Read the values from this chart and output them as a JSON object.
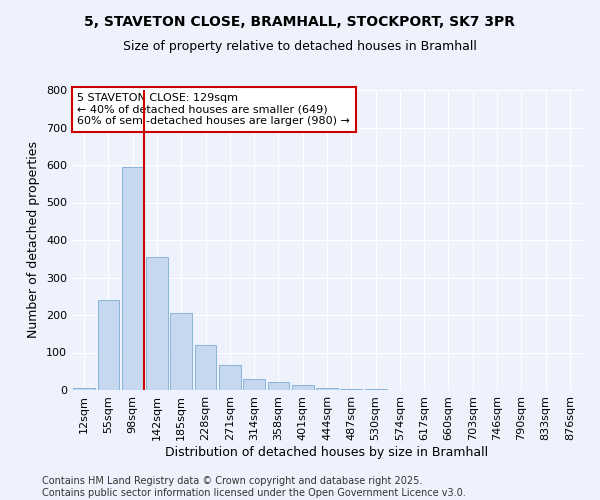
{
  "title_line1": "5, STAVETON CLOSE, BRAMHALL, STOCKPORT, SK7 3PR",
  "title_line2": "Size of property relative to detached houses in Bramhall",
  "xlabel": "Distribution of detached houses by size in Bramhall",
  "ylabel": "Number of detached properties",
  "categories": [
    "12sqm",
    "55sqm",
    "98sqm",
    "142sqm",
    "185sqm",
    "228sqm",
    "271sqm",
    "314sqm",
    "358sqm",
    "401sqm",
    "444sqm",
    "487sqm",
    "530sqm",
    "574sqm",
    "617sqm",
    "660sqm",
    "703sqm",
    "746sqm",
    "790sqm",
    "833sqm",
    "876sqm"
  ],
  "values": [
    5,
    240,
    595,
    355,
    205,
    120,
    68,
    30,
    22,
    14,
    5,
    2,
    2,
    0,
    0,
    0,
    0,
    0,
    0,
    0,
    0
  ],
  "bar_color": "#c5d8f0",
  "bar_edge_color": "#8ab4d8",
  "vline_color": "#cc0000",
  "vline_index": 2,
  "annotation_title": "5 STAVETON CLOSE: 129sqm",
  "annotation_line2": "← 40% of detached houses are smaller (649)",
  "annotation_line3": "60% of semi-detached houses are larger (980) →",
  "annotation_box_edgecolor": "#cc0000",
  "annotation_box_facecolor": "#ffffff",
  "ylim": [
    0,
    800
  ],
  "yticks": [
    0,
    100,
    200,
    300,
    400,
    500,
    600,
    700,
    800
  ],
  "background_color": "#eef2fc",
  "grid_color": "#ffffff",
  "footer_line1": "Contains HM Land Registry data © Crown copyright and database right 2025.",
  "footer_line2": "Contains public sector information licensed under the Open Government Licence v3.0.",
  "title_fontsize": 10,
  "subtitle_fontsize": 9,
  "axis_label_fontsize": 9,
  "tick_fontsize": 8,
  "annotation_fontsize": 8,
  "footer_fontsize": 7
}
